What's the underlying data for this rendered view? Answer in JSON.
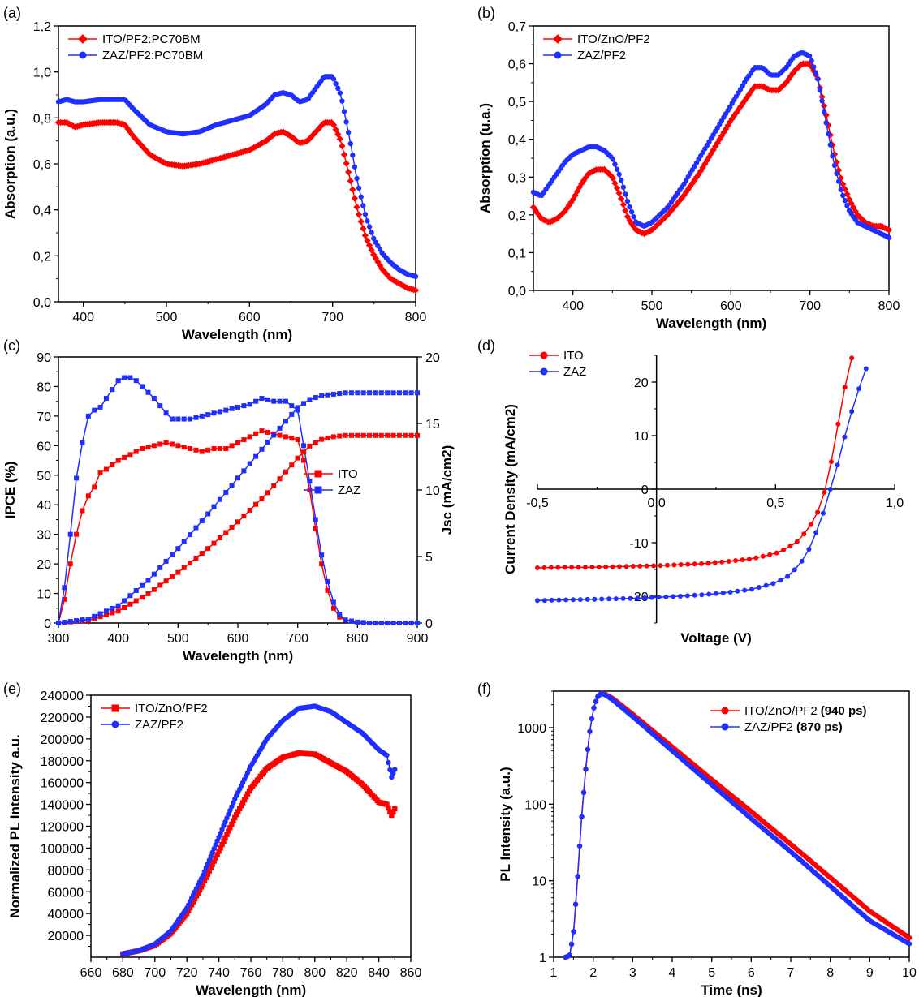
{
  "chart_data": [
    {
      "id": "a",
      "panel_label": "(a)",
      "type": "line",
      "xlabel": "Wavelength (nm)",
      "ylabel": "Absorption (a.u.)",
      "xlim": [
        370,
        800
      ],
      "ylim": [
        0,
        1.2
      ],
      "xticks": [
        400,
        500,
        600,
        700,
        800
      ],
      "yticks": [
        0,
        0.2,
        0.4,
        0.6,
        0.8,
        1.0,
        1.2
      ],
      "ytick_labels": [
        "0,0",
        "0,2",
        "0,4",
        "0,6",
        "0,8",
        "1,0",
        "1,2"
      ],
      "legend": "top-left",
      "series": [
        {
          "name": "ITO/PF2:PC70BM",
          "color": "#ff0000",
          "marker": "diamond",
          "x": [
            370,
            380,
            390,
            400,
            420,
            440,
            450,
            460,
            480,
            500,
            520,
            540,
            560,
            580,
            600,
            620,
            630,
            640,
            650,
            660,
            670,
            680,
            690,
            700,
            710,
            720,
            730,
            740,
            750,
            760,
            770,
            780,
            790,
            800
          ],
          "y": [
            0.78,
            0.78,
            0.76,
            0.77,
            0.78,
            0.78,
            0.77,
            0.72,
            0.64,
            0.6,
            0.59,
            0.6,
            0.62,
            0.64,
            0.66,
            0.7,
            0.73,
            0.74,
            0.72,
            0.69,
            0.7,
            0.74,
            0.78,
            0.78,
            0.7,
            0.55,
            0.4,
            0.28,
            0.2,
            0.14,
            0.1,
            0.08,
            0.06,
            0.05
          ]
        },
        {
          "name": "ZAZ/PF2:PC70BM",
          "color": "#1f2fff",
          "marker": "circle",
          "x": [
            370,
            380,
            390,
            400,
            420,
            440,
            450,
            460,
            480,
            500,
            520,
            540,
            560,
            580,
            600,
            620,
            630,
            640,
            650,
            660,
            670,
            680,
            690,
            700,
            710,
            720,
            730,
            740,
            750,
            760,
            770,
            780,
            790,
            800
          ],
          "y": [
            0.87,
            0.88,
            0.87,
            0.87,
            0.88,
            0.88,
            0.88,
            0.84,
            0.77,
            0.74,
            0.73,
            0.74,
            0.77,
            0.79,
            0.81,
            0.86,
            0.9,
            0.91,
            0.9,
            0.87,
            0.88,
            0.93,
            0.98,
            0.98,
            0.9,
            0.72,
            0.52,
            0.37,
            0.27,
            0.21,
            0.17,
            0.14,
            0.12,
            0.11
          ]
        }
      ]
    },
    {
      "id": "b",
      "panel_label": "(b)",
      "type": "line",
      "xlabel": "Wavelength (nm)",
      "ylabel": "Absorption (u.a.)",
      "xlim": [
        350,
        800
      ],
      "ylim": [
        0,
        0.7
      ],
      "xticks": [
        400,
        500,
        600,
        700,
        800
      ],
      "yticks": [
        0,
        0.1,
        0.2,
        0.3,
        0.4,
        0.5,
        0.6,
        0.7
      ],
      "ytick_labels": [
        "0,0",
        "0,1",
        "0,2",
        "0,3",
        "0,4",
        "0,5",
        "0,6",
        "0,7"
      ],
      "legend": "top-left",
      "series": [
        {
          "name": "ITO/ZnO/PF2",
          "color": "#ff0000",
          "marker": "diamond",
          "x": [
            350,
            360,
            370,
            380,
            390,
            400,
            410,
            420,
            430,
            440,
            450,
            460,
            470,
            480,
            490,
            500,
            520,
            540,
            560,
            580,
            600,
            620,
            630,
            640,
            650,
            660,
            670,
            680,
            690,
            700,
            710,
            720,
            730,
            740,
            750,
            760,
            770,
            780,
            790,
            800
          ],
          "y": [
            0.22,
            0.19,
            0.18,
            0.19,
            0.21,
            0.24,
            0.28,
            0.31,
            0.32,
            0.32,
            0.3,
            0.25,
            0.19,
            0.16,
            0.15,
            0.16,
            0.2,
            0.25,
            0.31,
            0.38,
            0.45,
            0.51,
            0.54,
            0.54,
            0.53,
            0.53,
            0.55,
            0.58,
            0.6,
            0.6,
            0.56,
            0.47,
            0.37,
            0.29,
            0.24,
            0.2,
            0.18,
            0.17,
            0.17,
            0.16
          ]
        },
        {
          "name": "ZAZ/PF2",
          "color": "#1f2fff",
          "marker": "circle",
          "x": [
            350,
            360,
            370,
            380,
            390,
            400,
            410,
            420,
            430,
            440,
            450,
            460,
            470,
            480,
            490,
            500,
            520,
            540,
            560,
            580,
            600,
            620,
            630,
            640,
            650,
            660,
            670,
            680,
            690,
            700,
            710,
            720,
            730,
            740,
            750,
            760,
            770,
            780,
            790,
            800
          ],
          "y": [
            0.26,
            0.25,
            0.28,
            0.31,
            0.34,
            0.36,
            0.37,
            0.38,
            0.38,
            0.37,
            0.35,
            0.3,
            0.23,
            0.18,
            0.17,
            0.18,
            0.22,
            0.28,
            0.35,
            0.42,
            0.49,
            0.56,
            0.59,
            0.59,
            0.57,
            0.57,
            0.59,
            0.62,
            0.63,
            0.62,
            0.56,
            0.45,
            0.34,
            0.26,
            0.21,
            0.18,
            0.17,
            0.16,
            0.15,
            0.14
          ]
        }
      ]
    },
    {
      "id": "c",
      "panel_label": "(c)",
      "type": "line",
      "xlabel": "Wavelength (nm)",
      "ylabel": "IPCE (%)",
      "ylabel_right": "Jsc (mA/cm2)",
      "xlim": [
        300,
        900
      ],
      "ylim": [
        0,
        90
      ],
      "ylim_right": [
        0,
        20
      ],
      "xticks": [
        300,
        400,
        500,
        600,
        700,
        800,
        900
      ],
      "yticks": [
        0,
        10,
        20,
        30,
        40,
        50,
        60,
        70,
        80,
        90
      ],
      "yticks_right": [
        0,
        5,
        10,
        15,
        20
      ],
      "legend": "center-right",
      "series": [
        {
          "name": "ITO",
          "color": "#ff0000",
          "marker": "square",
          "axis": "left",
          "x": [
            300,
            310,
            320,
            330,
            340,
            350,
            360,
            370,
            380,
            400,
            420,
            440,
            460,
            480,
            500,
            520,
            540,
            560,
            580,
            600,
            620,
            640,
            660,
            680,
            700,
            710,
            720,
            730,
            740,
            750,
            760,
            770,
            780,
            800,
            820,
            840,
            860,
            880,
            900
          ],
          "y": [
            0,
            8,
            20,
            30,
            38,
            43,
            46,
            51,
            52,
            55,
            57,
            59,
            60,
            61,
            60,
            59,
            58,
            59,
            59,
            61,
            63,
            65,
            64,
            63,
            62,
            55,
            45,
            32,
            20,
            11,
            5,
            2,
            1,
            0.3,
            0,
            0,
            0,
            0,
            0
          ]
        },
        {
          "name": "ZAZ",
          "color": "#1f2fff",
          "marker": "square",
          "axis": "left",
          "x": [
            300,
            310,
            320,
            330,
            340,
            350,
            360,
            370,
            380,
            400,
            410,
            420,
            430,
            440,
            460,
            480,
            490,
            500,
            520,
            540,
            560,
            580,
            600,
            620,
            640,
            660,
            680,
            700,
            710,
            720,
            730,
            740,
            750,
            760,
            770,
            780,
            800,
            820,
            840,
            860,
            880,
            900
          ],
          "y": [
            0,
            12,
            30,
            49,
            61,
            70,
            72,
            73,
            76,
            82,
            83,
            83,
            82,
            80,
            76,
            71,
            69,
            69,
            69,
            70,
            71,
            72,
            73,
            74,
            76,
            75,
            75,
            72,
            60,
            48,
            35,
            23,
            14,
            7,
            3,
            1,
            0.3,
            0,
            0,
            0,
            0,
            0
          ]
        },
        {
          "name": "",
          "color": "#ff0000",
          "marker": "square",
          "axis": "right",
          "x": [
            300,
            350,
            400,
            450,
            500,
            550,
            600,
            650,
            700,
            720,
            740,
            760,
            780,
            800,
            850,
            900
          ],
          "y": [
            0,
            0.2,
            0.9,
            2.2,
            3.8,
            5.6,
            7.6,
            9.8,
            12.4,
            13.3,
            13.8,
            14.0,
            14.1,
            14.1,
            14.1,
            14.1
          ]
        },
        {
          "name": "",
          "color": "#1f2fff",
          "marker": "square",
          "axis": "right",
          "x": [
            300,
            350,
            400,
            450,
            500,
            550,
            600,
            650,
            700,
            720,
            740,
            760,
            780,
            800,
            850,
            900
          ],
          "y": [
            0,
            0.3,
            1.3,
            3.2,
            5.6,
            8.2,
            10.9,
            13.6,
            16.2,
            16.8,
            17.1,
            17.2,
            17.3,
            17.3,
            17.3,
            17.3
          ]
        }
      ]
    },
    {
      "id": "d",
      "panel_label": "(d)",
      "type": "line",
      "xlabel": "Voltage (V)",
      "ylabel": "Current Density (mA/cm2)",
      "xlim": [
        -0.5,
        1.0
      ],
      "ylim": [
        -25,
        25
      ],
      "xticks": [
        -0.5,
        0,
        0.5,
        1.0
      ],
      "xtick_labels": [
        "-0,5",
        "0,0",
        "0,5",
        "1,0"
      ],
      "yticks": [
        -20,
        -10,
        0,
        10,
        20
      ],
      "ytick_labels": [
        "-20",
        "-10",
        "0",
        "10",
        "20"
      ],
      "legend": "top-left",
      "series": [
        {
          "name": "ITO",
          "color": "#ff0000",
          "marker": "circle",
          "x": [
            -0.5,
            -0.4,
            -0.3,
            -0.2,
            -0.1,
            0,
            0.1,
            0.2,
            0.3,
            0.4,
            0.5,
            0.55,
            0.6,
            0.65,
            0.68,
            0.7,
            0.72,
            0.74,
            0.76,
            0.78,
            0.8,
            0.82
          ],
          "y": [
            -14.7,
            -14.6,
            -14.6,
            -14.5,
            -14.4,
            -14.3,
            -14.1,
            -13.9,
            -13.5,
            -13.0,
            -12.0,
            -11.0,
            -9.5,
            -6.5,
            -4.0,
            -1.5,
            2.0,
            6.5,
            11.5,
            16.5,
            21.0,
            24.5
          ]
        },
        {
          "name": "ZAZ",
          "color": "#1f2fff",
          "marker": "circle",
          "x": [
            -0.5,
            -0.4,
            -0.3,
            -0.2,
            -0.1,
            0,
            0.1,
            0.2,
            0.3,
            0.4,
            0.5,
            0.55,
            0.6,
            0.65,
            0.7,
            0.72,
            0.74,
            0.76,
            0.78,
            0.8,
            0.82,
            0.84,
            0.86,
            0.88
          ],
          "y": [
            -20.8,
            -20.7,
            -20.6,
            -20.5,
            -20.4,
            -20.2,
            -20.0,
            -19.7,
            -19.3,
            -18.7,
            -17.5,
            -16.3,
            -14.2,
            -10.5,
            -4.5,
            -1.5,
            1.5,
            4.5,
            8.0,
            11.5,
            14.5,
            17.5,
            20.0,
            22.5
          ]
        }
      ]
    },
    {
      "id": "e",
      "panel_label": "(e)",
      "type": "line",
      "xlabel": "Wavelength (nm)",
      "ylabel": "Normalized PL Intensity a.u.",
      "xlim": [
        660,
        860
      ],
      "ylim": [
        0,
        240000
      ],
      "xticks": [
        660,
        680,
        700,
        720,
        740,
        760,
        780,
        800,
        820,
        840,
        860
      ],
      "yticks": [
        20000,
        40000,
        60000,
        80000,
        100000,
        120000,
        140000,
        160000,
        180000,
        200000,
        220000,
        240000
      ],
      "legend": "top-left",
      "series": [
        {
          "name": "ITO/ZnO/PF2",
          "color": "#ff0000",
          "marker": "square",
          "x": [
            680,
            690,
            700,
            710,
            720,
            730,
            740,
            750,
            760,
            770,
            780,
            790,
            800,
            810,
            820,
            830,
            840,
            845,
            848,
            850
          ],
          "y": [
            3000,
            6000,
            11000,
            22000,
            40000,
            67000,
            97000,
            128000,
            155000,
            173000,
            183000,
            187000,
            186000,
            178000,
            170000,
            158000,
            142000,
            140000,
            130000,
            136000
          ]
        },
        {
          "name": "ZAZ/PF2",
          "color": "#1f2fff",
          "marker": "circle",
          "x": [
            680,
            690,
            700,
            710,
            720,
            730,
            740,
            750,
            760,
            770,
            780,
            790,
            800,
            810,
            820,
            830,
            840,
            845,
            848,
            850
          ],
          "y": [
            3000,
            6000,
            12000,
            24000,
            45000,
            75000,
            110000,
            145000,
            175000,
            200000,
            217000,
            228000,
            230000,
            225000,
            215000,
            205000,
            190000,
            185000,
            165000,
            172000
          ]
        }
      ]
    },
    {
      "id": "f",
      "panel_label": "(f)",
      "type": "line",
      "xlabel": "Time (ns)",
      "ylabel": "PL Intensity (a.u.)",
      "xlim": [
        1,
        10
      ],
      "ylim": [
        1,
        3000
      ],
      "yscale": "log",
      "xticks": [
        1,
        2,
        3,
        4,
        5,
        6,
        7,
        8,
        9,
        10
      ],
      "yticks": [
        1,
        10,
        100,
        1000
      ],
      "legend": "top-right",
      "series": [
        {
          "name": "ITO/ZnO/PF2",
          "suffix": "(940 ps)",
          "color": "#ff0000",
          "marker": "circle",
          "x": [
            1.3,
            1.4,
            1.5,
            1.6,
            1.7,
            1.8,
            1.9,
            2.0,
            2.1,
            2.2,
            2.3,
            2.5,
            3,
            4,
            5,
            6,
            7,
            8,
            9,
            10
          ],
          "y": [
            1,
            1.05,
            2,
            10,
            60,
            250,
            800,
            1700,
            2500,
            2800,
            2750,
            2400,
            1500,
            560,
            210,
            80,
            30,
            11,
            4.0,
            1.8
          ]
        },
        {
          "name": "ZAZ/PF2",
          "suffix": "(870 ps)",
          "color": "#1f2fff",
          "marker": "circle",
          "x": [
            1.3,
            1.4,
            1.5,
            1.6,
            1.7,
            1.8,
            1.9,
            2.0,
            2.1,
            2.2,
            2.3,
            2.5,
            3,
            4,
            5,
            6,
            7,
            8,
            9,
            10
          ],
          "y": [
            1,
            1.05,
            2,
            10,
            60,
            250,
            800,
            1700,
            2500,
            2800,
            2700,
            2300,
            1400,
            500,
            180,
            65,
            24,
            8.5,
            3.0,
            1.5
          ]
        }
      ]
    }
  ]
}
